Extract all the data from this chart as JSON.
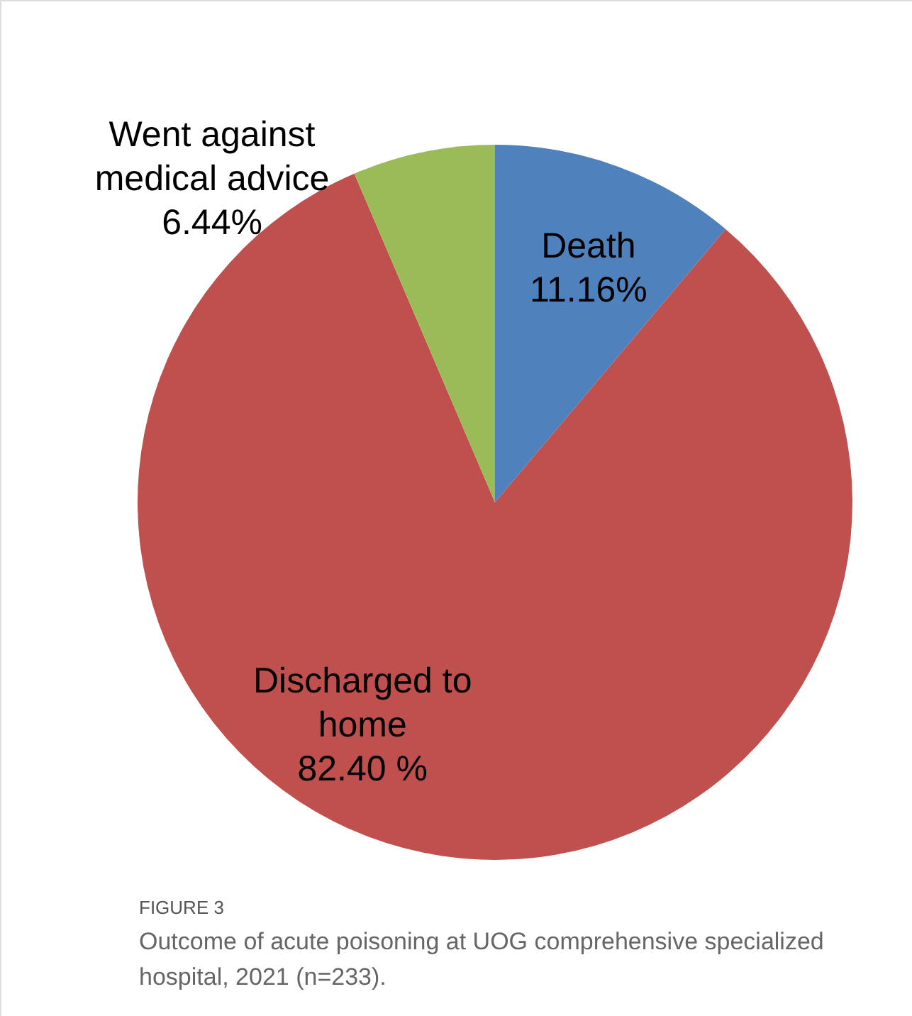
{
  "chart_data": {
    "type": "pie",
    "categories": [
      "Death",
      "Discharged to home",
      "Went against medical advice"
    ],
    "values": [
      11.16,
      82.4,
      6.44
    ],
    "colors": [
      "#4f81bd",
      "#c0504d",
      "#9bbb59"
    ],
    "value_labels": [
      "11.16%",
      "82.40 %",
      "6.44%"
    ],
    "annotations": [
      "FIGURE 3",
      "Outcome of acute poisoning at UOG comprehensive specialized hospital, 2021 (n=233)."
    ]
  }
}
